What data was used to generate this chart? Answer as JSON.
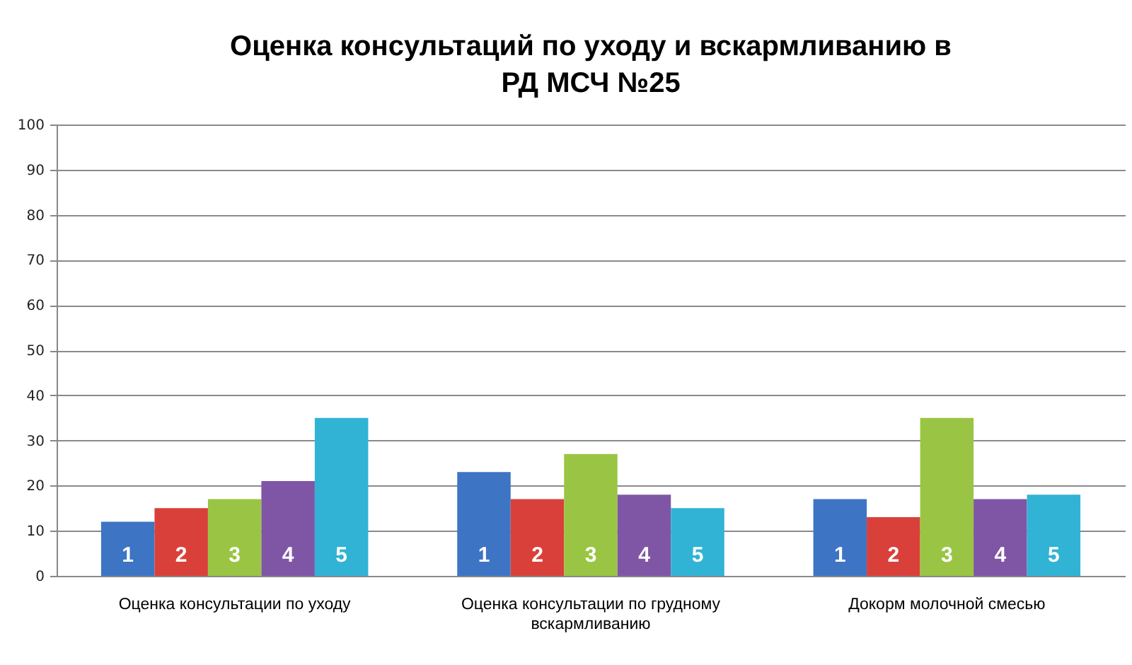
{
  "chart_data": {
    "type": "bar",
    "title": "Оценка консультаций по уходу и вскармливанию в РД МСЧ №25",
    "categories": [
      "Оценка консультации по уходу",
      "Оценка консультации по грудному вскармливанию",
      "Докорм молочной смесью"
    ],
    "series": [
      {
        "name": "1",
        "color": "#3e74c4",
        "values": [
          12,
          23,
          17
        ]
      },
      {
        "name": "2",
        "color": "#d9403a",
        "values": [
          15,
          17,
          13
        ]
      },
      {
        "name": "3",
        "color": "#9ac544",
        "values": [
          17,
          27,
          35
        ]
      },
      {
        "name": "4",
        "color": "#7f56a6",
        "values": [
          21,
          18,
          17
        ]
      },
      {
        "name": "5",
        "color": "#31b3d5",
        "values": [
          35,
          15,
          18
        ]
      }
    ],
    "ylim": [
      0,
      100
    ],
    "yticks": [
      0,
      10,
      20,
      30,
      40,
      50,
      60,
      70,
      80,
      90,
      100
    ],
    "grid": "y"
  }
}
